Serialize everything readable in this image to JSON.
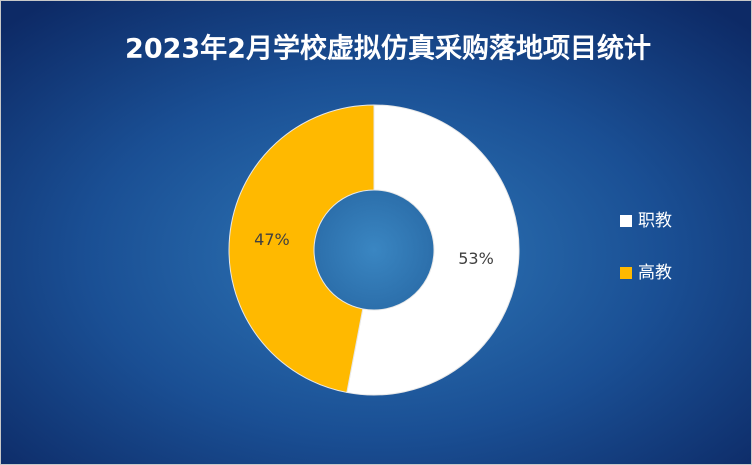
{
  "chart_data": {
    "type": "pie",
    "donut": true,
    "title": "2023年2月学校虚拟仿真采购落地项目统计",
    "categories": [
      "职教",
      "高教"
    ],
    "values": [
      53,
      47
    ],
    "value_labels": [
      "53%",
      "47%"
    ],
    "colors": [
      "#ffffff",
      "#ffb900"
    ],
    "legend": "right"
  }
}
